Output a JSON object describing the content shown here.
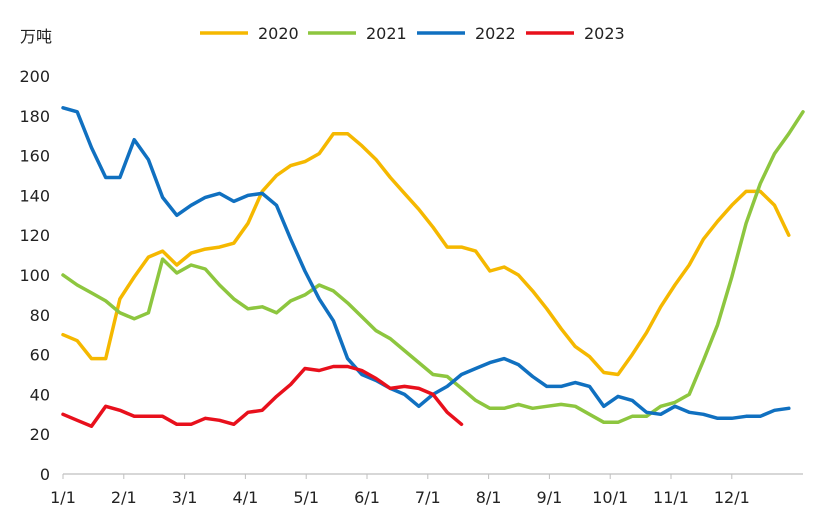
{
  "chart_data": {
    "type": "line",
    "ylabel": "万吨",
    "ylim": [
      0,
      200
    ],
    "yticks": [
      "0",
      "20",
      "40",
      "60",
      "80",
      "100",
      "120",
      "140",
      "160",
      "180",
      "200"
    ],
    "xticks": [
      "1/1",
      "2/1",
      "3/1",
      "4/1",
      "5/1",
      "6/1",
      "7/1",
      "8/1",
      "9/1",
      "10/1",
      "11/1",
      "12/1"
    ],
    "grid": false,
    "legend": "top",
    "series": [
      {
        "name": "2020",
        "color": "#F5B800",
        "values": [
          70,
          67,
          58,
          58,
          88,
          99,
          109,
          112,
          105,
          111,
          113,
          114,
          116,
          126,
          142,
          150,
          155,
          157,
          161,
          171,
          171,
          165,
          158,
          149,
          141,
          133,
          124,
          114,
          114,
          112,
          102,
          104,
          100,
          92,
          83,
          73,
          64,
          59,
          51,
          50,
          60,
          71,
          84,
          95,
          105,
          118,
          127,
          135,
          142,
          142,
          135,
          120
        ]
      },
      {
        "name": "2021",
        "color": "#8DC63F",
        "values": [
          100,
          95,
          91,
          87,
          81,
          78,
          81,
          108,
          101,
          105,
          103,
          95,
          88,
          83,
          84,
          81,
          87,
          90,
          95,
          92,
          86,
          79,
          72,
          68,
          62,
          56,
          50,
          49,
          43,
          37,
          33,
          33,
          35,
          33,
          34,
          35,
          34,
          30,
          26,
          26,
          29,
          29,
          34,
          36,
          40,
          57,
          75,
          99,
          126,
          146,
          161,
          171,
          182
        ]
      },
      {
        "name": "2022",
        "color": "#1070C0",
        "values": [
          184,
          182,
          164,
          149,
          149,
          168,
          158,
          139,
          130,
          135,
          139,
          141,
          137,
          140,
          141,
          135,
          118,
          102,
          88,
          77,
          58,
          50,
          47,
          43,
          40,
          34,
          40,
          44,
          50,
          53,
          56,
          58,
          55,
          49,
          44,
          44,
          46,
          44,
          34,
          39,
          37,
          31,
          30,
          34,
          31,
          30,
          28,
          28,
          29,
          29,
          32,
          33
        ]
      },
      {
        "name": "2023",
        "color": "#E8101C",
        "values": [
          30,
          27,
          24,
          34,
          32,
          29,
          29,
          29,
          25,
          25,
          28,
          27,
          25,
          31,
          32,
          39,
          45,
          53,
          52,
          54,
          54,
          52,
          48,
          43,
          44,
          43,
          40,
          31,
          25
        ]
      }
    ]
  }
}
